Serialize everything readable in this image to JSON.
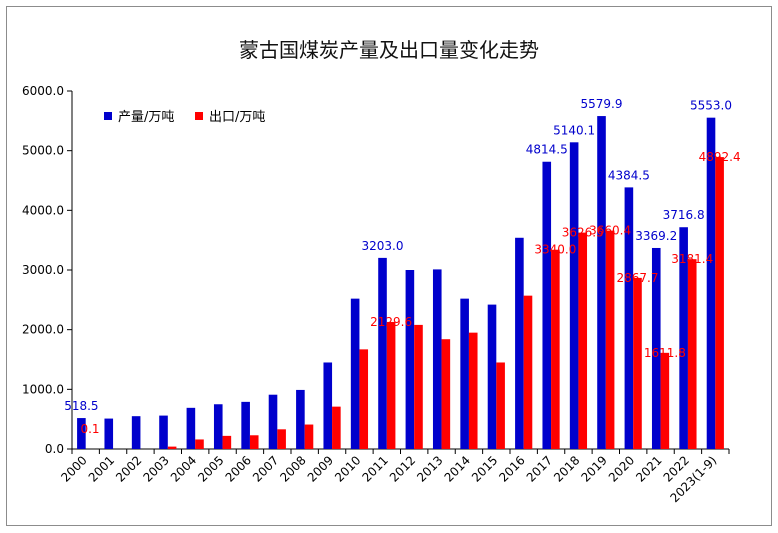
{
  "chart_data": {
    "type": "bar",
    "title": "蒙古国煤炭产量及出口量变化走势",
    "categories": [
      "2000",
      "2001",
      "2002",
      "2003",
      "2004",
      "2005",
      "2006",
      "2007",
      "2008",
      "2009",
      "2010",
      "2011",
      "2012",
      "2013",
      "2014",
      "2015",
      "2016",
      "2017",
      "2018",
      "2019",
      "2020",
      "2021",
      "2022",
      "2023(1-9)"
    ],
    "series": [
      {
        "name": "产量/万吨",
        "color": "#0000CC",
        "values": [
          518.5,
          510,
          550,
          560,
          690,
          750,
          790,
          910,
          990,
          1450,
          2520,
          3203.0,
          3000,
          3010,
          2520,
          2420,
          3540,
          4814.5,
          5140.1,
          5579.9,
          4384.5,
          3369.2,
          3716.8,
          5553.0
        ],
        "labels": [
          "518.5",
          "",
          "",
          "",
          "",
          "",
          "",
          "",
          "",
          "",
          "",
          "3203.0",
          "",
          "",
          "",
          "",
          "",
          "4814.5",
          "5140.1",
          "5579.9",
          "4384.5",
          "3369.2",
          "3716.8",
          "5553.0"
        ]
      },
      {
        "name": "出口/万吨",
        "color": "#FF0000",
        "values": [
          0.1,
          0,
          0,
          40,
          160,
          220,
          230,
          330,
          410,
          710,
          1670,
          2129.6,
          2080,
          1840,
          1950,
          1450,
          2570,
          3340.0,
          3626.5,
          3660.4,
          2867.7,
          1611.8,
          3181.4,
          4892.4
        ],
        "labels": [
          "0.1",
          "",
          "",
          "",
          "",
          "",
          "",
          "",
          "",
          "",
          "",
          "2129.6",
          "",
          "",
          "",
          "",
          "",
          "3340.0",
          "3626.5",
          "3660.4",
          "2867.7",
          "1611.8",
          "3181.4",
          "4892.4"
        ]
      }
    ],
    "yticks": [
      "0.0",
      "1000.0",
      "2000.0",
      "3000.0",
      "4000.0",
      "5000.0",
      "6000.0"
    ],
    "ylim": [
      0,
      6000
    ],
    "grid": false,
    "legend_position": "top-left"
  }
}
